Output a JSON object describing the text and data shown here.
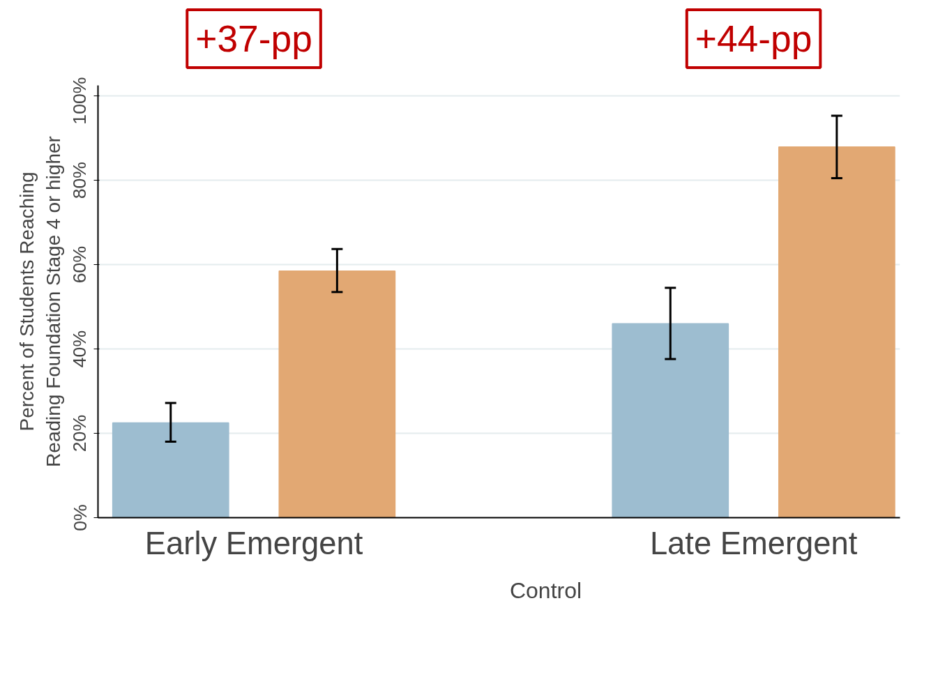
{
  "chart_data": {
    "type": "bar",
    "categories": [
      "Early Emergent",
      "Late Emergent"
    ],
    "ylabel": "Percent of Students Reaching\nReading Foundation Stage 4 or higher",
    "series": [
      {
        "name": "Control",
        "color": "#9dbdd0",
        "values": [
          22.5,
          46
        ],
        "errors": [
          [
            18,
            27.2
          ],
          [
            37.6,
            54.5
          ]
        ]
      },
      {
        "color": "#e2a873",
        "values": [
          58.5,
          87.9
        ],
        "errors": [
          [
            53.5,
            63.7
          ],
          [
            80.5,
            95.3
          ]
        ]
      }
    ],
    "ylim": [
      0,
      102.5
    ],
    "yticks": [
      {
        "value": 0,
        "label": "0%"
      },
      {
        "value": 20,
        "label": "20%"
      },
      {
        "value": 40,
        "label": "40%"
      },
      {
        "value": 60,
        "label": "60%"
      },
      {
        "value": 80,
        "label": "80%"
      },
      {
        "value": 100,
        "label": "100%"
      }
    ],
    "annotations": [
      "+37-pp",
      "+44-pp"
    ],
    "grid": "y",
    "legend": "bottom"
  }
}
